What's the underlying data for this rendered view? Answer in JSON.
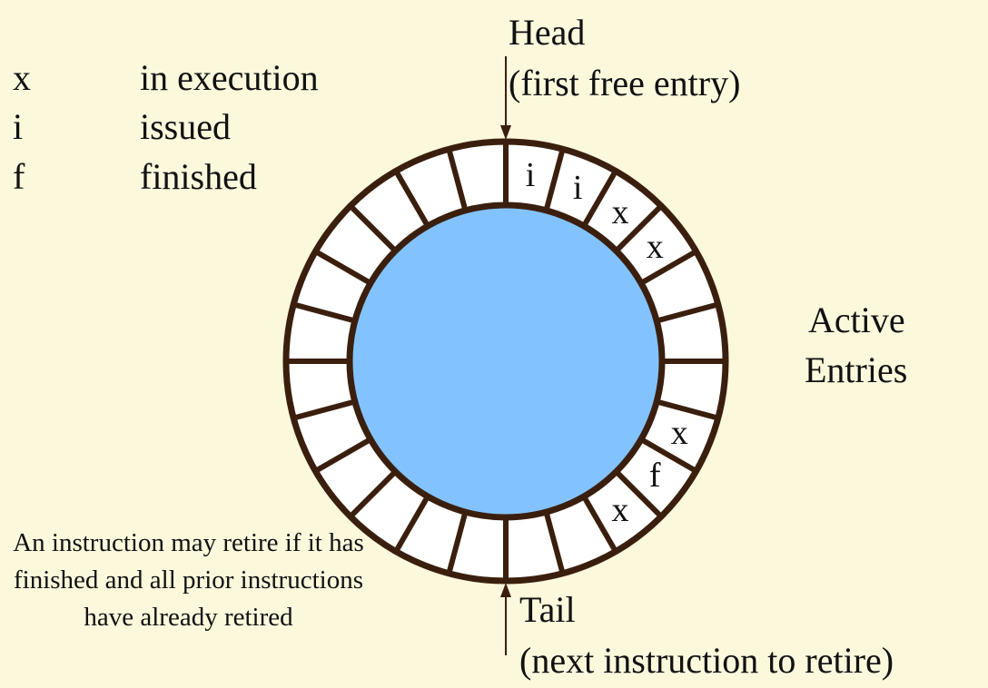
{
  "legend": [
    {
      "key": "x",
      "meaning": "in execution"
    },
    {
      "key": "i",
      "meaning": "issued"
    },
    {
      "key": "f",
      "meaning": "finished"
    }
  ],
  "head": {
    "title": "Head",
    "subtitle": "(first free entry)"
  },
  "tail": {
    "title": "Tail",
    "subtitle": "(next instruction to retire)"
  },
  "active": {
    "line1": "Active",
    "line2": "Entries"
  },
  "note": "An instruction may retire if it has finished and all prior instructions have already retired",
  "ring": {
    "segment_count": 24,
    "labels": [
      "i",
      "i",
      "x",
      "x",
      "",
      "",
      "",
      "x",
      "f",
      "x",
      "",
      "",
      "",
      "",
      "",
      "",
      "",
      "",
      "",
      "",
      "",
      "",
      "",
      ""
    ]
  },
  "colors": {
    "background": "#fbf8dc",
    "ring_stroke": "#3b1f0e",
    "ring_fill": "#ffffff",
    "center_fill": "#82c3ff",
    "arrow": "#3b1f0e"
  }
}
